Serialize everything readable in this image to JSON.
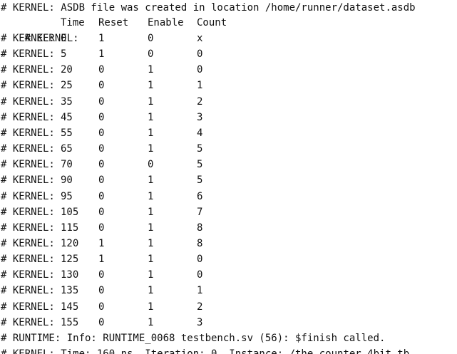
{
  "console": {
    "header_line": "# KERNEL: ASDB file was created in location /home/runner/dataset.asdb",
    "table_prefix": "# KERNEL:",
    "columns": {
      "time": "Time",
      "reset": "Reset",
      "enable": "Enable",
      "count": "Count"
    },
    "rows": [
      {
        "time": "0",
        "reset": "1",
        "enable": "0",
        "count": "x"
      },
      {
        "time": "5",
        "reset": "1",
        "enable": "0",
        "count": "0"
      },
      {
        "time": "20",
        "reset": "0",
        "enable": "1",
        "count": "0"
      },
      {
        "time": "25",
        "reset": "0",
        "enable": "1",
        "count": "1"
      },
      {
        "time": "35",
        "reset": "0",
        "enable": "1",
        "count": "2"
      },
      {
        "time": "45",
        "reset": "0",
        "enable": "1",
        "count": "3"
      },
      {
        "time": "55",
        "reset": "0",
        "enable": "1",
        "count": "4"
      },
      {
        "time": "65",
        "reset": "0",
        "enable": "1",
        "count": "5"
      },
      {
        "time": "70",
        "reset": "0",
        "enable": "0",
        "count": "5"
      },
      {
        "time": "90",
        "reset": "0",
        "enable": "1",
        "count": "5"
      },
      {
        "time": "95",
        "reset": "0",
        "enable": "1",
        "count": "6"
      },
      {
        "time": "105",
        "reset": "0",
        "enable": "1",
        "count": "7"
      },
      {
        "time": "115",
        "reset": "0",
        "enable": "1",
        "count": "8"
      },
      {
        "time": "120",
        "reset": "1",
        "enable": "1",
        "count": "8"
      },
      {
        "time": "125",
        "reset": "1",
        "enable": "1",
        "count": "0"
      },
      {
        "time": "130",
        "reset": "0",
        "enable": "1",
        "count": "0"
      },
      {
        "time": "135",
        "reset": "0",
        "enable": "1",
        "count": "1"
      },
      {
        "time": "145",
        "reset": "0",
        "enable": "1",
        "count": "2"
      },
      {
        "time": "155",
        "reset": "0",
        "enable": "1",
        "count": "3"
      }
    ],
    "runtime_line": "# RUNTIME: Info: RUNTIME_0068 testbench.sv (56): $finish called.",
    "cutoff_line": "# KERNEL: Time: 160 ns, Iteration: 0, Instance: /the_counter_4bit_tb"
  }
}
